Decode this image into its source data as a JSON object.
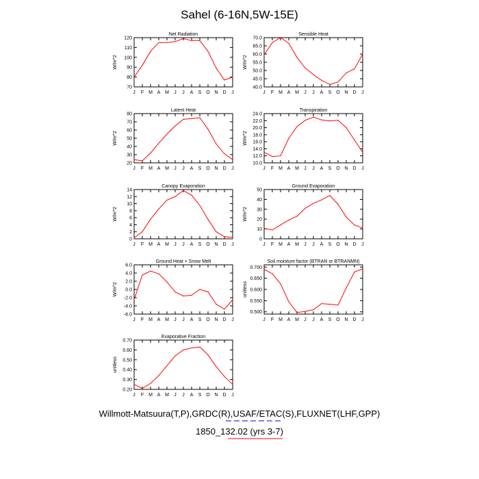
{
  "title": "Sahel (6-16N,5W-15E)",
  "footer": {
    "line1": "Willmott-Matsuura(T,P),GRDC(R),USAF/ETAC(S),FLUXNET(LHF,GPP)",
    "line2": "1850_132.02 (yrs 3-7)"
  },
  "colors": {
    "series": "#ff0000",
    "axis": "#000000",
    "deco_blue": "#0000cc",
    "deco_red": "#ff0000"
  },
  "chart_data": [
    {
      "type": "line",
      "title": "Net Radiation",
      "ylabel": "W/m^2",
      "categories": [
        "J",
        "F",
        "M",
        "A",
        "M",
        "J",
        "J",
        "A",
        "S",
        "O",
        "N",
        "D",
        "J"
      ],
      "values": [
        80,
        92,
        106,
        115,
        115,
        116,
        119,
        117,
        117,
        106,
        89,
        77,
        80
      ],
      "ylim": [
        70,
        120
      ],
      "yticks": [
        "70",
        "80",
        "90",
        "100",
        "110",
        "120"
      ]
    },
    {
      "type": "line",
      "title": "Sensible Heat",
      "ylabel": "W/m^2",
      "categories": [
        "J",
        "F",
        "M",
        "A",
        "M",
        "J",
        "J",
        "A",
        "S",
        "O",
        "N",
        "D",
        "J"
      ],
      "values": [
        59.5,
        67,
        70,
        66.5,
        58,
        51.5,
        47.5,
        44,
        41.5,
        43,
        48.5,
        51,
        60
      ],
      "ylim": [
        40,
        70
      ],
      "yticks": [
        "40.0",
        "45.0",
        "50.0",
        "55.0",
        "60.0",
        "65.0",
        "70.0"
      ]
    },
    {
      "type": "line",
      "title": "Latent Heat",
      "ylabel": "W/m^2",
      "categories": [
        "J",
        "F",
        "M",
        "A",
        "M",
        "J",
        "J",
        "A",
        "S",
        "O",
        "N",
        "D",
        "J"
      ],
      "values": [
        24,
        22.5,
        32,
        44,
        55,
        65,
        73,
        74,
        75,
        61,
        43,
        31,
        24
      ],
      "ylim": [
        20,
        80
      ],
      "yticks": [
        "20",
        "30",
        "40",
        "50",
        "60",
        "70",
        "80"
      ]
    },
    {
      "type": "line",
      "title": "Transpiration",
      "ylabel": "W/m^2",
      "categories": [
        "J",
        "F",
        "M",
        "A",
        "M",
        "J",
        "J",
        "A",
        "S",
        "O",
        "N",
        "D",
        "J"
      ],
      "values": [
        13,
        11.8,
        12,
        17,
        20.3,
        22.1,
        23,
        22.2,
        21.9,
        22.1,
        20,
        16.5,
        13
      ],
      "ylim": [
        10,
        24
      ],
      "yticks": [
        "10.0",
        "12.0",
        "14.0",
        "16.0",
        "18.0",
        "20.0",
        "22.0",
        "24.0"
      ]
    },
    {
      "type": "line",
      "title": "Canopy Evaporation",
      "ylabel": "W/m^2",
      "categories": [
        "J",
        "F",
        "M",
        "A",
        "M",
        "J",
        "J",
        "A",
        "S",
        "O",
        "N",
        "D",
        "J"
      ],
      "values": [
        0.3,
        2,
        5.6,
        8.5,
        11,
        12,
        13.7,
        12.4,
        9.5,
        5.5,
        2,
        0.6,
        0.4
      ],
      "ylim": [
        0,
        14
      ],
      "yticks": [
        "0",
        "2",
        "4",
        "6",
        "8",
        "10",
        "12",
        "14"
      ]
    },
    {
      "type": "line",
      "title": "Ground Evaporation",
      "ylabel": "W/m^2",
      "categories": [
        "J",
        "F",
        "M",
        "A",
        "M",
        "J",
        "J",
        "A",
        "S",
        "O",
        "N",
        "D",
        "J"
      ],
      "values": [
        10.5,
        9,
        14,
        19,
        23,
        31,
        36,
        39.5,
        44,
        35,
        22,
        14,
        11
      ],
      "ylim": [
        0,
        50
      ],
      "yticks": [
        "0",
        "10",
        "20",
        "30",
        "40",
        "50"
      ]
    },
    {
      "type": "line",
      "title": "Ground Heat + Snow Melt",
      "ylabel": "W/m^2",
      "categories": [
        "J",
        "F",
        "M",
        "A",
        "M",
        "J",
        "J",
        "A",
        "S",
        "O",
        "N",
        "D",
        "J"
      ],
      "values": [
        -2.5,
        3.5,
        4.5,
        3.8,
        1.8,
        -0.6,
        -1.6,
        -1.4,
        0,
        -0.6,
        -3.6,
        -4.8,
        -2.5
      ],
      "ylim": [
        -6,
        6
      ],
      "yticks": [
        "-6.0",
        "-4.0",
        "-2.0",
        "0.0",
        "2.0",
        "4.0",
        "6.0"
      ]
    },
    {
      "type": "line",
      "title": "Soil moisture factor (BTRAN or BTRANMN)",
      "ylabel": "unitless",
      "categories": [
        "J",
        "F",
        "M",
        "A",
        "M",
        "J",
        "J",
        "A",
        "S",
        "O",
        "N",
        "D",
        "J"
      ],
      "values": [
        0.69,
        0.67,
        0.625,
        0.545,
        0.497,
        0.502,
        0.51,
        0.537,
        0.534,
        0.53,
        0.607,
        0.678,
        0.692
      ],
      "ylim": [
        0.49,
        0.71
      ],
      "yticks": [
        "0.500",
        "0.550",
        "0.600",
        "0.650",
        "0.700"
      ],
      "ytick_values": [
        0.5,
        0.55,
        0.6,
        0.65,
        0.7
      ]
    },
    {
      "type": "line",
      "title": "Evaporative Fraction",
      "ylabel": "unitless",
      "categories": [
        "J",
        "F",
        "M",
        "A",
        "M",
        "J",
        "J",
        "A",
        "S",
        "O",
        "N",
        "D",
        "J"
      ],
      "values": [
        0.25,
        0.21,
        0.26,
        0.34,
        0.44,
        0.54,
        0.6,
        0.62,
        0.63,
        0.55,
        0.43,
        0.33,
        0.25
      ],
      "ylim": [
        0.2,
        0.7
      ],
      "yticks": [
        "0.20",
        "0.30",
        "0.40",
        "0.50",
        "0.60",
        "0.70"
      ]
    }
  ]
}
